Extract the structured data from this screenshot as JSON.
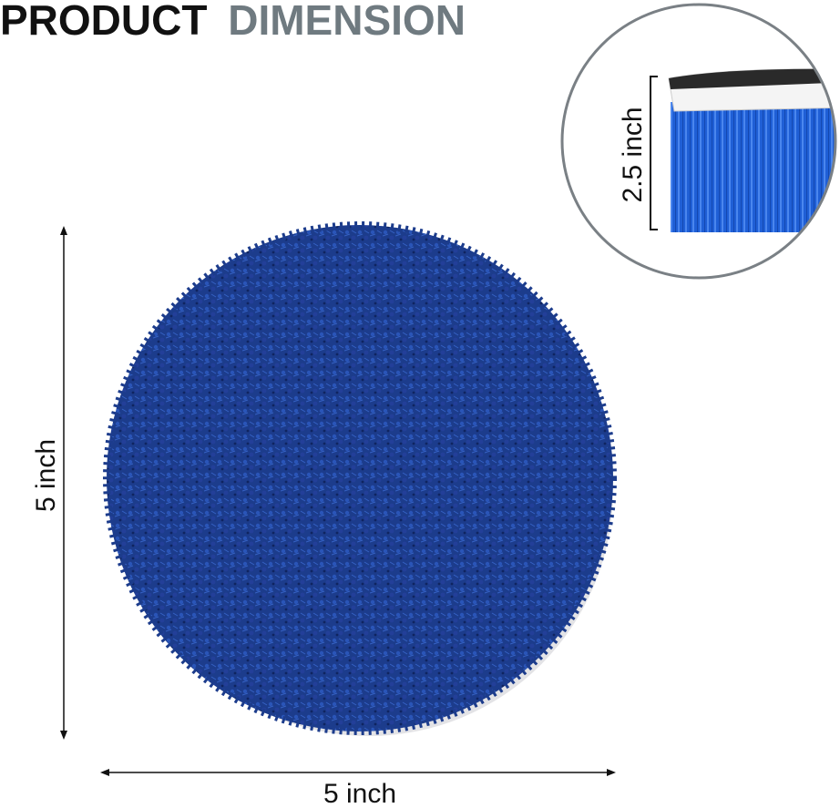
{
  "title": {
    "main": "PRODUCT",
    "accent": "DIMENSION"
  },
  "dimensions": {
    "height": "5 inch",
    "width": "5 inch",
    "bristle_length": "2.5 inch"
  }
}
